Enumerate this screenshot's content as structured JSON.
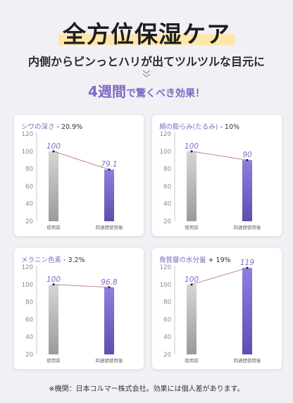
{
  "header": {
    "title": "全方位保湿ケア",
    "subtitle": "内側からピンっとハリが出てツルツルな目元に",
    "period_number": "4",
    "period_unit": "週間",
    "period_rest": "で驚くべき効果！"
  },
  "footnote": "※機関：日本コルマー株式会社。効果には個人差があります。",
  "colors": {
    "accent": "#7e6bc4",
    "before_bar_top": "#d6d6d6",
    "before_bar_bottom": "#9a9a9a",
    "after_bar_top": "#8d7fe0",
    "after_bar_bottom": "#5d4fb0",
    "trend_line": "#b87a8a"
  },
  "chart_data": [
    {
      "type": "bar",
      "name": "シワの深さ",
      "change": "- 20.9%",
      "categories": [
        "使用前",
        "四週間使用後"
      ],
      "values": [
        100,
        79.1
      ],
      "value_labels": [
        "100",
        "79.1"
      ],
      "yticks": [
        "20",
        "40",
        "60",
        "80",
        "100",
        "120"
      ],
      "ylim": [
        20,
        120
      ],
      "grid": false
    },
    {
      "type": "bar",
      "name": "頬の膨らみ(たるみ)",
      "change": "- 10%",
      "categories": [
        "使用前",
        "四週間使用後"
      ],
      "values": [
        100,
        90
      ],
      "value_labels": [
        "100",
        "90"
      ],
      "yticks": [
        "20",
        "40",
        "60",
        "80",
        "100",
        "120"
      ],
      "ylim": [
        20,
        120
      ],
      "grid": false
    },
    {
      "type": "bar",
      "name": "メラニン色素",
      "change": "- 3.2%",
      "categories": [
        "使用前",
        "四週間使用後"
      ],
      "values": [
        100,
        96.8
      ],
      "value_labels": [
        "100",
        "96.8"
      ],
      "yticks": [
        "20",
        "40",
        "60",
        "80",
        "100",
        "120"
      ],
      "ylim": [
        20,
        120
      ],
      "grid": false
    },
    {
      "type": "bar",
      "name": "角質層の水分量",
      "change": "+ 19%",
      "categories": [
        "使用前",
        "四週間使用後"
      ],
      "values": [
        100,
        119
      ],
      "value_labels": [
        "100",
        "119"
      ],
      "yticks": [
        "20",
        "40",
        "60",
        "80",
        "100",
        "120"
      ],
      "ylim": [
        20,
        120
      ],
      "grid": false
    }
  ]
}
